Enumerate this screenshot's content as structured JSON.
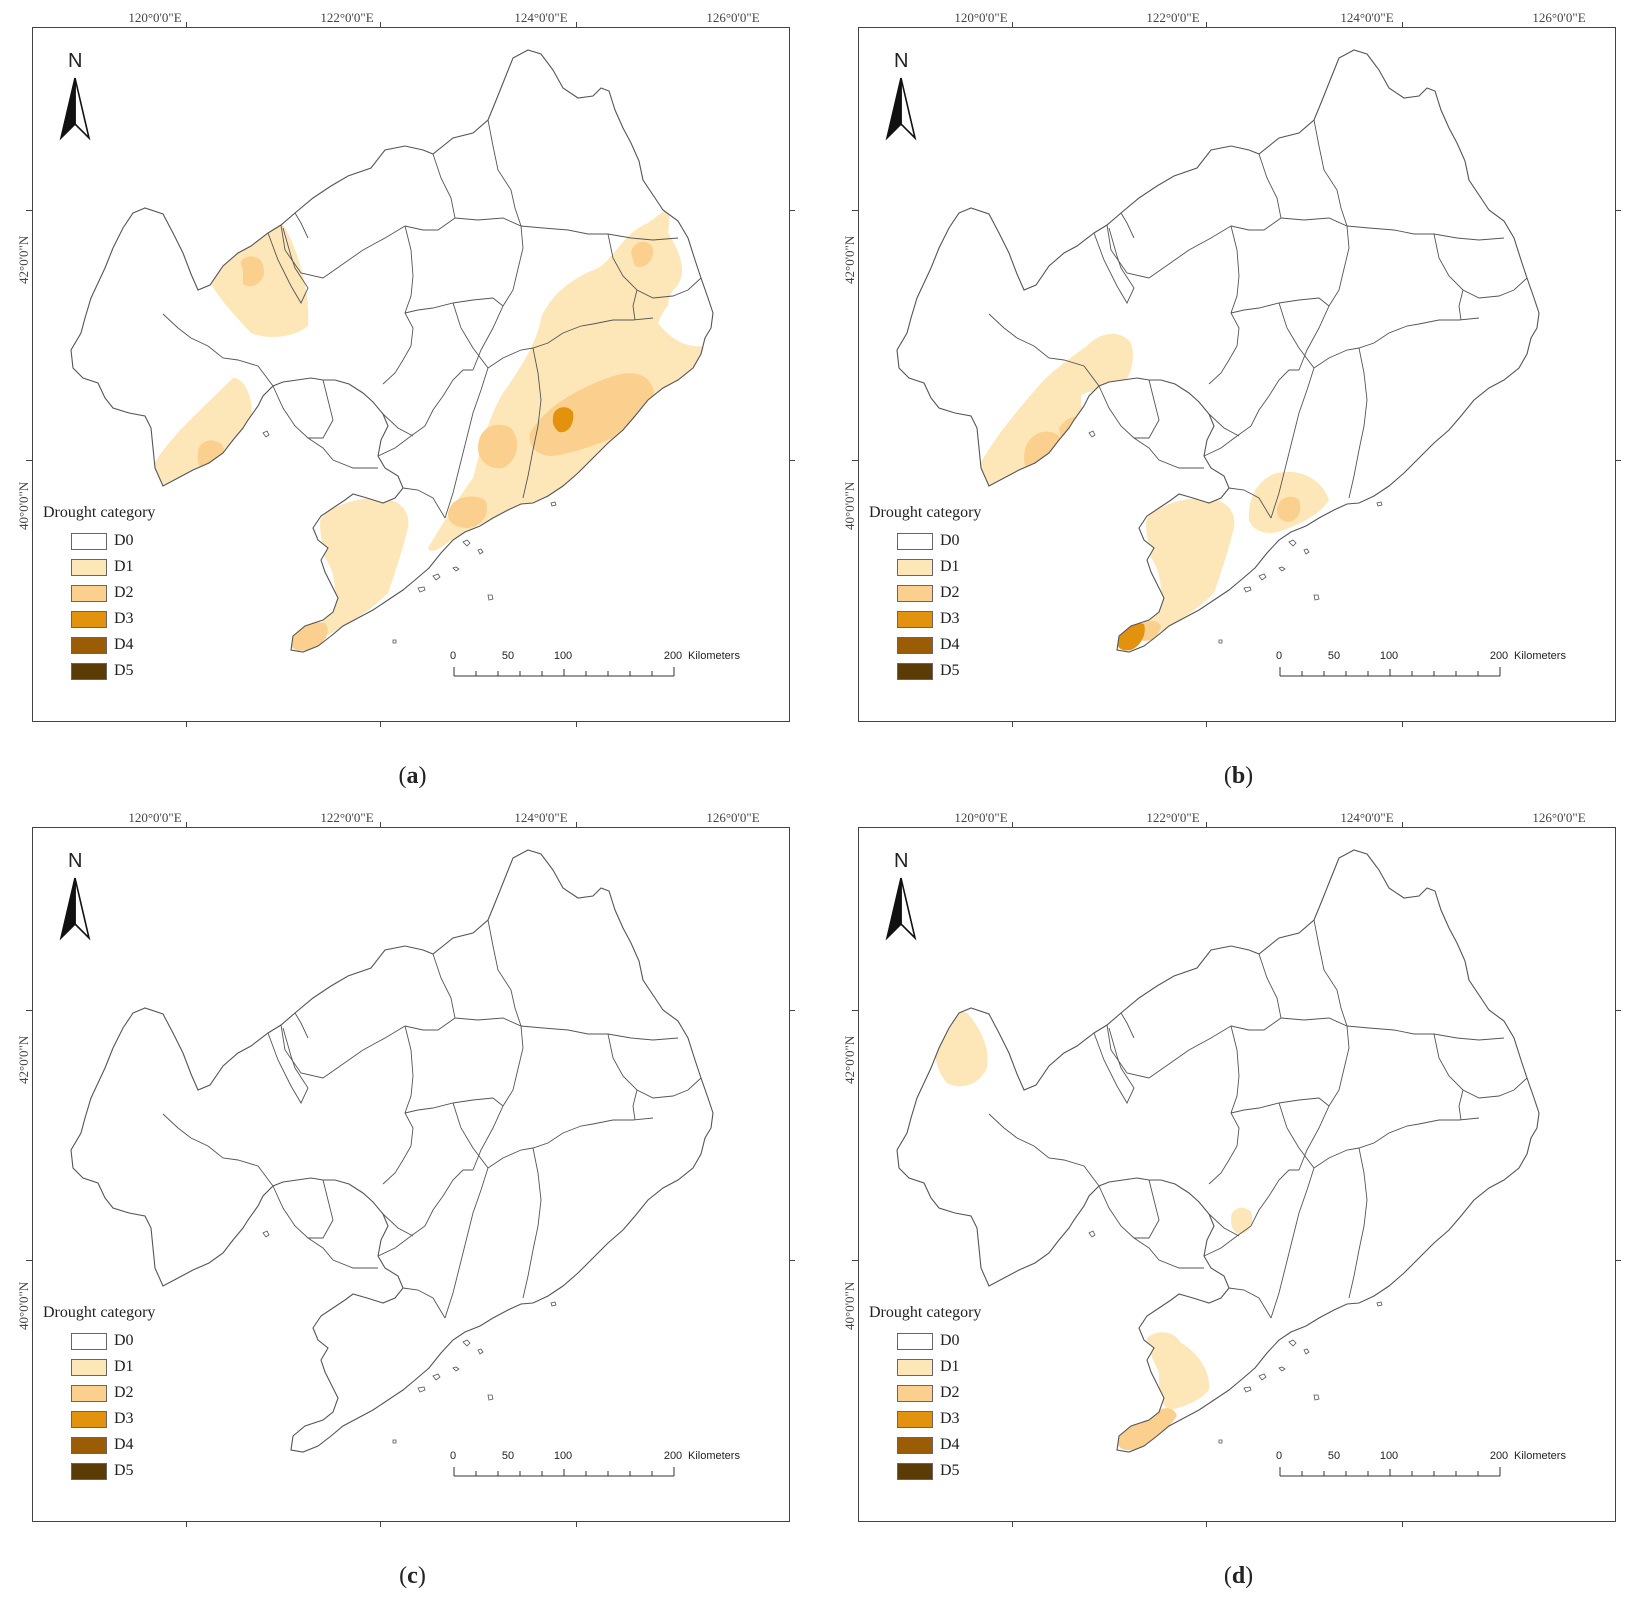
{
  "colors": {
    "D0": "#ffffff",
    "D1": "#fde7b8",
    "D2": "#fbd08f",
    "D3": "#e3920e",
    "D4": "#9a5d05",
    "D5": "#5c3b06",
    "border": "#555555",
    "frame": "#444444"
  },
  "axes": {
    "longitude_labels": [
      "120°0'0\"E",
      "122°0'0\"E",
      "124°0'0\"E",
      "126°0'0\"E"
    ],
    "latitude_labels": [
      "42°0'0\"N",
      "40°0'0\"N"
    ]
  },
  "north_arrow": {
    "label": "N",
    "icon": "north-arrow-icon"
  },
  "legend": {
    "title": "Drought category",
    "items": [
      {
        "label": "D0",
        "color": "#ffffff"
      },
      {
        "label": "D1",
        "color": "#fde7b8"
      },
      {
        "label": "D2",
        "color": "#fbd08f"
      },
      {
        "label": "D3",
        "color": "#e3920e"
      },
      {
        "label": "D4",
        "color": "#9a5d05"
      },
      {
        "label": "D5",
        "color": "#5c3b06"
      }
    ]
  },
  "scale_bar": {
    "ticks": [
      "0",
      "50",
      "100",
      "200"
    ],
    "unit": "Kilometers"
  },
  "panels": [
    {
      "id": "a",
      "label": "a",
      "drought_zones": [
        "D1",
        "D2",
        "D3"
      ]
    },
    {
      "id": "b",
      "label": "b",
      "drought_zones": [
        "D1",
        "D2",
        "D3"
      ]
    },
    {
      "id": "c",
      "label": "c",
      "drought_zones": []
    },
    {
      "id": "d",
      "label": "d",
      "drought_zones": [
        "D1",
        "D2"
      ]
    }
  ]
}
